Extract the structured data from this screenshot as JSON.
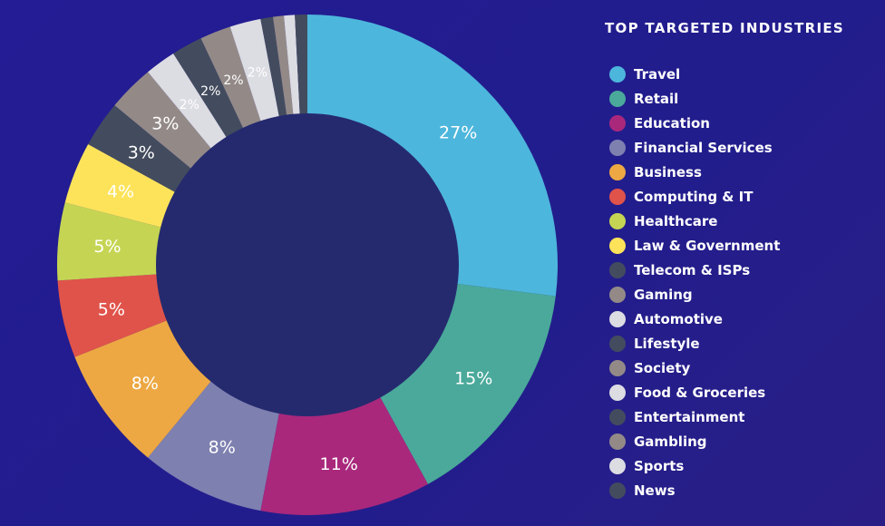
{
  "chart_data": {
    "type": "pie",
    "donut": true,
    "title": "TOP TARGETED INDUSTRIES",
    "legend_position": "right",
    "center_color": "#252a6f",
    "slices": [
      {
        "name": "Travel",
        "value": 27,
        "label": "27%",
        "color": "#4db6dc"
      },
      {
        "name": "Retail",
        "value": 15,
        "label": "15%",
        "color": "#4aa99a"
      },
      {
        "name": "Education",
        "value": 11,
        "label": "11%",
        "color": "#a9287c"
      },
      {
        "name": "Financial Services",
        "value": 8,
        "label": "8%",
        "color": "#7e80b0"
      },
      {
        "name": "Business",
        "value": 8,
        "label": "8%",
        "color": "#eda843"
      },
      {
        "name": "Computing & IT",
        "value": 5,
        "label": "5%",
        "color": "#e0534a"
      },
      {
        "name": "Healthcare",
        "value": 5,
        "label": "5%",
        "color": "#c5d553"
      },
      {
        "name": "Law & Government",
        "value": 4,
        "label": "4%",
        "color": "#fde35a"
      },
      {
        "name": "Telecom & ISPs",
        "value": 3,
        "label": "3%",
        "color": "#434c5e"
      },
      {
        "name": "Gaming",
        "value": 3,
        "label": "3%",
        "color": "#938a88"
      },
      {
        "name": "Automotive",
        "value": 2,
        "label": "2%",
        "color": "#dcdce3"
      },
      {
        "name": "Lifestyle",
        "value": 2,
        "label": "2%",
        "color": "#434c5e"
      },
      {
        "name": "Society",
        "value": 2,
        "label": "2%",
        "color": "#938a88"
      },
      {
        "name": "Food & Groceries",
        "value": 2,
        "label": "2%",
        "color": "#dcdce3"
      },
      {
        "name": "Entertainment",
        "value": 0.8,
        "label": "",
        "color": "#434c5e"
      },
      {
        "name": "Gambling",
        "value": 0.7,
        "label": "",
        "color": "#938a88"
      },
      {
        "name": "Sports",
        "value": 0.7,
        "label": "",
        "color": "#dcdce3"
      },
      {
        "name": "News",
        "value": 0.8,
        "label": "",
        "color": "#434c5e"
      }
    ]
  }
}
